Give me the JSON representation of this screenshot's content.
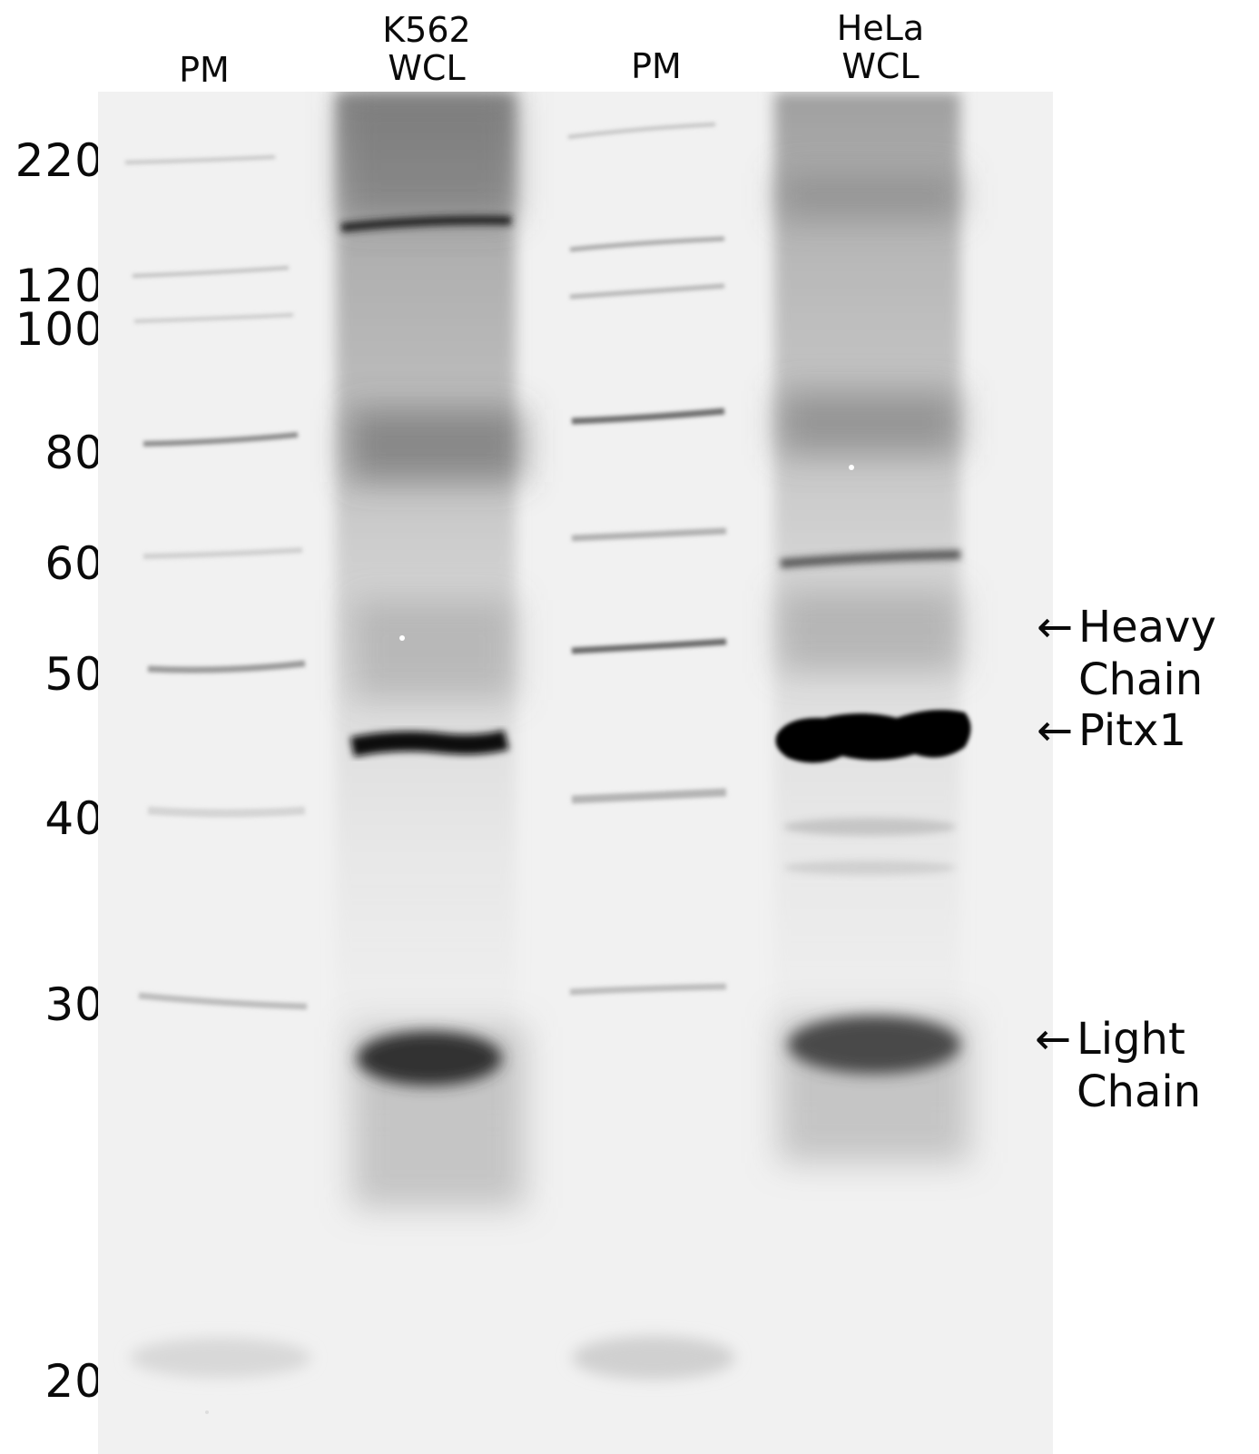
{
  "lanes": [
    {
      "id": "pm1",
      "lines": [
        "PM"
      ]
    },
    {
      "id": "k562",
      "lines": [
        "K562",
        "WCL"
      ]
    },
    {
      "id": "pm2",
      "lines": [
        "PM"
      ]
    },
    {
      "id": "hela",
      "lines": [
        "HeLa",
        "WCL"
      ]
    }
  ],
  "markers": [
    "220",
    "120",
    "100",
    "80",
    "60",
    "50",
    "40",
    "30",
    "20"
  ],
  "annotations": [
    {
      "id": "heavy",
      "arrow": "←",
      "line1": "Heavy",
      "line2": "Chain"
    },
    {
      "id": "pitx1",
      "arrow": "←",
      "line1": "Pitx1",
      "line2": ""
    },
    {
      "id": "light",
      "arrow": "←",
      "line1": "Light",
      "line2": "Chain"
    }
  ]
}
